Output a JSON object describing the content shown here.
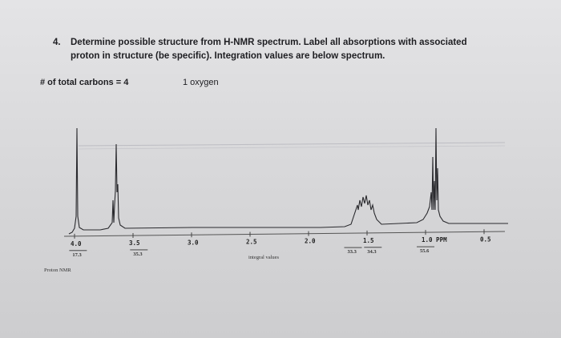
{
  "question": {
    "number": "4.",
    "line1": "Determine possible structure from H-NMR spectrum. Label all absorptions with associated",
    "line2": "proton in structure (be specific). Integration values are below spectrum."
  },
  "info": {
    "carbons": "# of total carbons = 4",
    "oxygen": "1 oxygen"
  },
  "spectrum": {
    "ticks": [
      {
        "ppm": 4.0,
        "label": "4.0"
      },
      {
        "ppm": 3.5,
        "label": "3.5"
      },
      {
        "ppm": 3.0,
        "label": "3.0"
      },
      {
        "ppm": 2.5,
        "label": "2.5"
      },
      {
        "ppm": 2.0,
        "label": "2.0"
      },
      {
        "ppm": 1.5,
        "label": "1.5"
      },
      {
        "ppm": 1.0,
        "label": "1.0 PPM"
      },
      {
        "ppm": 0.5,
        "label": "0.5"
      }
    ],
    "integrals": [
      {
        "ppm": 3.97,
        "label": "17.3"
      },
      {
        "ppm": 3.45,
        "label": "35.3"
      },
      {
        "ppm": 1.62,
        "label": "33.3"
      },
      {
        "ppm": 1.45,
        "label": "34.3"
      },
      {
        "ppm": 1.0,
        "label": "55.6"
      }
    ],
    "integral_caption": "integral values",
    "proton_label": "Proton NMR"
  }
}
